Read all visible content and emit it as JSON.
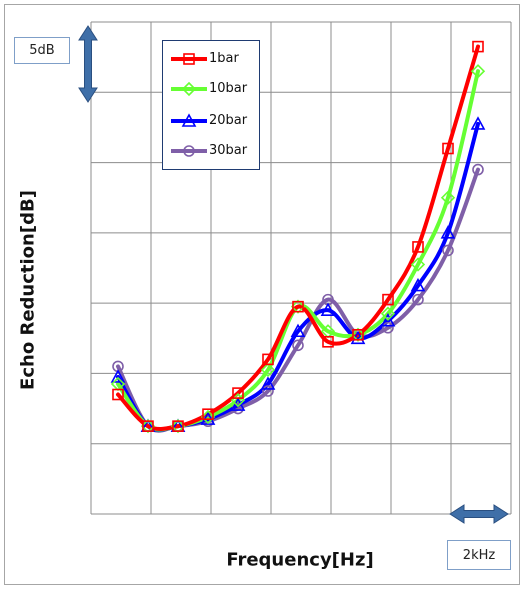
{
  "chart_data": {
    "type": "line",
    "title": "",
    "xlabel": "Frequency[Hz]",
    "ylabel": "Echo Reduction[dB]",
    "scale_annotations": {
      "y": "5dB",
      "x": "2kHz"
    },
    "x_range": [
      0,
      7
    ],
    "y_range": [
      0,
      7
    ],
    "grid": true,
    "legend_position": "top-left",
    "x": [
      0.45,
      0.95,
      1.45,
      1.95,
      2.45,
      2.95,
      3.45,
      3.95,
      4.45,
      4.95,
      5.45,
      5.95,
      6.45
    ],
    "series": [
      {
        "name": "1bar",
        "color": "#ff0000",
        "marker": "square",
        "values": [
          1.7,
          1.25,
          1.25,
          1.42,
          1.72,
          2.2,
          2.95,
          2.45,
          2.55,
          3.05,
          3.8,
          5.2,
          6.65
        ]
      },
      {
        "name": "10bar",
        "color": "#66ff33",
        "marker": "diamond",
        "values": [
          1.85,
          1.25,
          1.25,
          1.38,
          1.62,
          2.05,
          2.95,
          2.6,
          2.55,
          2.85,
          3.55,
          4.5,
          6.3
        ]
      },
      {
        "name": "20bar",
        "color": "#0000ff",
        "marker": "triangle",
        "values": [
          1.95,
          1.25,
          1.25,
          1.35,
          1.55,
          1.85,
          2.6,
          2.9,
          2.5,
          2.75,
          3.25,
          4.0,
          5.55
        ]
      },
      {
        "name": "30bar",
        "color": "#7f5fa8",
        "marker": "circle",
        "values": [
          2.1,
          1.25,
          1.25,
          1.32,
          1.5,
          1.75,
          2.4,
          3.05,
          2.55,
          2.65,
          3.05,
          3.75,
          4.9
        ]
      }
    ]
  }
}
